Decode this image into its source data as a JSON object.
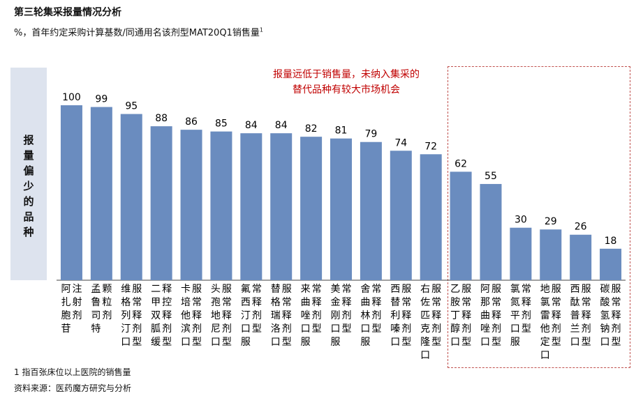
{
  "title": "第三轮集采报量情况分析",
  "subtitle": "%，首年约定采购计算基数/同通用名该剂型MAT20Q1销售量",
  "subtitle_sup": "1",
  "side_label": "报量偏少的品种",
  "annotation_line1": "报量远低于销售量，未纳入集采的",
  "annotation_line2": "替代品种有较大市场机会",
  "footnote": "1 指百张床位以上医院的销售量",
  "source": "资料来源：医药魔方研究与分析",
  "colors": {
    "bar": "#6a8cbf",
    "annotation": "#c00000",
    "dashed_box": "#c0504d",
    "sidebar": "#dde3ee"
  },
  "chart_data": {
    "type": "bar",
    "categories": [
      "阿扎胞苷注射剂",
      "孟鲁司特颗粒剂",
      "维格列汀口服常释剂型",
      "二甲双胍缓释控释剂型",
      "卡培他滨口服常释剂型",
      "头孢地尼口服常释剂型",
      "氟西汀口服常释剂型",
      "替格瑞洛口服常释剂型",
      "来曲唑口服常释剂型",
      "美金刚口服常释剂型",
      "舍曲林口服常释剂型",
      "西替利嗪口服常释剂型",
      "右佐匹克隆口服常释剂型",
      "乙胺丁醇口服常释剂型",
      "阿那曲唑口服常释剂型",
      "氯氮平口服常释剂型",
      "地氯雷他定口服常释剂型",
      "西酞普兰口服常释剂型",
      "碳酸氢钠口服常释剂型"
    ],
    "values": [
      100,
      99,
      95,
      88,
      86,
      85,
      84,
      84,
      82,
      81,
      79,
      74,
      72,
      62,
      55,
      30,
      29,
      26,
      18
    ],
    "ylim": [
      0,
      100
    ]
  }
}
